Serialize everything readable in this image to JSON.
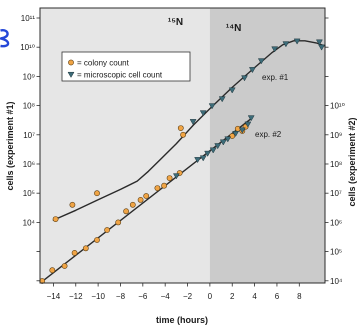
{
  "chart_data": {
    "type": "scatter",
    "xlabel": "time (hours)",
    "ylabel": "cells (experiment #1)",
    "ylabel_right": "cells (experiment #2)",
    "yscale": "log",
    "grid": false,
    "xlim": [
      -15.2,
      10.3
    ],
    "ylim": [
      84,
      220000000000.0
    ],
    "ylim_right": [
      8400,
      22000000000000.0
    ],
    "x_ticks": [
      -14,
      -12,
      -10,
      -8,
      -6,
      -4,
      -2,
      0,
      2,
      4,
      6,
      8
    ],
    "x_tick_labels": [
      "−14",
      "−12",
      "−10",
      "−8",
      "−6",
      "−4",
      "−2",
      "0",
      "2",
      "4",
      "6",
      "8"
    ],
    "y_ticks": [
      100.0,
      1000.0,
      10000.0,
      100000.0,
      1000000.0,
      10000000.0,
      100000000.0,
      1000000000.0,
      10000000000.0,
      100000000000.0
    ],
    "y_tick_labels": [
      "",
      "",
      "10⁴",
      "10⁵",
      "10⁶",
      "10⁷",
      "10⁸",
      "10⁹",
      "10¹⁰",
      "10¹¹"
    ],
    "y_ticks_right": [
      10000.0,
      100000.0,
      1000000.0,
      10000000.0,
      100000000.0,
      1000000000.0,
      10000000000.0,
      100000000000.0,
      1000000000000.0,
      10000000000000.0
    ],
    "y_tick_labels_right": [
      "10⁴",
      "10⁵",
      "10⁶",
      "10⁷",
      "10⁸",
      "10⁹",
      "10¹⁰",
      "",
      "",
      ""
    ],
    "regions": [
      {
        "label": "¹⁵N",
        "from": -15.2,
        "to": 0,
        "color": "#e6e6e6"
      },
      {
        "label": "¹⁴N",
        "from": 0,
        "to": 10.3,
        "color": "#cbcbcb"
      }
    ],
    "legend": {
      "position": "upper-left",
      "entries": [
        {
          "marker": "circle",
          "label": "= colony count",
          "color": "#f0a445"
        },
        {
          "marker": "triangle-down",
          "label": "= microscopic cell count",
          "color": "#3d6c79"
        }
      ]
    },
    "experiments": [
      {
        "label": "exp. #1",
        "y_axis": "left",
        "colony_count": {
          "t": [
            -13.8,
            -12.3,
            -10.1,
            -2.6,
            -2.4
          ],
          "cells": [
            13000.0,
            40000.0,
            100000.0,
            17000000.0,
            10000000.0
          ]
        },
        "cell_count": {
          "t": [
            -1.5,
            -0.6,
            0.2,
            1.1,
            2.0,
            3.1,
            3.8,
            4.6,
            5.8,
            6.8,
            7.8,
            9.8,
            10.0
          ],
          "cells": [
            28000000.0,
            56000000.0,
            98000000.0,
            170000000.0,
            340000000.0,
            890000000.0,
            1700000000.0,
            3400000000.0,
            8700000000.0,
            13000000000.0,
            16000000000.0,
            15000000000.0,
            10000000000.0
          ]
        },
        "fit": {
          "t": [
            -14,
            -12,
            -10,
            -8,
            -6.5,
            -5.5,
            -4.5,
            -3,
            -1.5,
            0,
            2,
            4,
            5.5,
            6.5,
            7.5,
            8.5,
            9.5,
            10.3
          ],
          "cells": [
            12000.0,
            26000.0,
            60000.0,
            135000.0,
            260000.0,
            560000.0,
            1350000.0,
            5000000.0,
            21000000.0,
            79000000.0,
            420000000.0,
            2000000000.0,
            6300000000.0,
            12000000000.0,
            16600000000.0,
            16600000000.0,
            14000000000.0,
            11000000000.0
          ]
        }
      },
      {
        "label": "exp. #2",
        "y_axis": "right",
        "colony_count": {
          "t": [
            -15.0,
            -14.1,
            -13.0,
            -12.1,
            -11.1,
            -10.1,
            -9.2,
            -8.2,
            -7.5,
            -6.9,
            -6.2,
            -5.7,
            -4.7,
            -4.1,
            -3.6,
            -2.7,
            2.0,
            2.5,
            2.9,
            3.2
          ],
          "cells": [
            9800.0,
            23000.0,
            32000.0,
            90000.0,
            130000.0,
            250000.0,
            550000.0,
            1000000.0,
            2400000.0,
            4000000.0,
            5900000.0,
            8000000.0,
            15000000.0,
            18000000.0,
            33000000.0,
            49000000.0,
            910000000.0,
            1600000000.0,
            1350000000.0,
            1900000000.0
          ]
        },
        "cell_count": {
          "t": [
            -3.0,
            -1.1,
            -0.6,
            -0.2,
            0.3,
            0.7,
            1.2,
            1.6,
            2.3,
            2.9,
            3.4,
            3.7
          ],
          "cells": [
            39000000.0,
            140000000.0,
            160000000.0,
            230000000.0,
            300000000.0,
            420000000.0,
            560000000.0,
            720000000.0,
            1100000000.0,
            1450000000.0,
            2300000000.0,
            3800000000.0
          ]
        },
        "fit": {
          "t": [
            -15.1,
            3.7
          ],
          "cells": [
            8900.0,
            3600000000.0
          ]
        }
      }
    ]
  }
}
